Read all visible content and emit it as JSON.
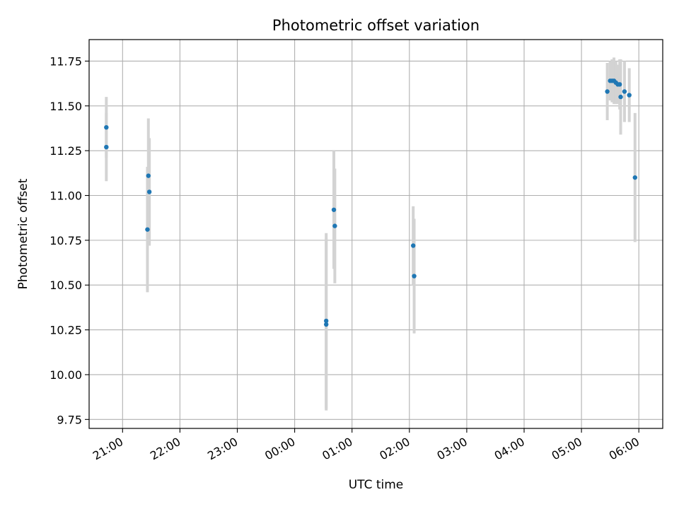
{
  "chart_data": {
    "type": "scatter",
    "title": "Photometric offset variation",
    "xlabel": "UTC time",
    "ylabel": "Photometric offset",
    "xlim": [
      "20:25",
      "06:25"
    ],
    "x_crosses_midnight": true,
    "ylim": [
      9.7,
      11.87
    ],
    "x_ticks": [
      "21:00",
      "22:00",
      "23:00",
      "00:00",
      "01:00",
      "02:00",
      "03:00",
      "04:00",
      "05:00",
      "06:00"
    ],
    "y_ticks": [
      "9.75",
      "10.00",
      "10.25",
      "10.50",
      "10.75",
      "11.00",
      "11.25",
      "11.50",
      "11.75"
    ],
    "grid": true,
    "marker_color": "#1f77b4",
    "errorbar_color": "#d3d3d3",
    "points": [
      {
        "x": "20:43",
        "y": 11.38,
        "err": 0.17
      },
      {
        "x": "20:43",
        "y": 11.27,
        "err": 0.19
      },
      {
        "x": "21:27",
        "y": 11.11,
        "err": 0.32
      },
      {
        "x": "21:28",
        "y": 11.02,
        "err": 0.3
      },
      {
        "x": "21:26",
        "y": 10.81,
        "err": 0.35
      },
      {
        "x": "00:33",
        "y": 10.3,
        "err": 0.49
      },
      {
        "x": "00:33",
        "y": 10.28,
        "err": 0.48
      },
      {
        "x": "00:41",
        "y": 10.92,
        "err": 0.33
      },
      {
        "x": "00:42",
        "y": 10.83,
        "err": 0.32
      },
      {
        "x": "02:04",
        "y": 10.72,
        "err": 0.22
      },
      {
        "x": "02:05",
        "y": 10.55,
        "err": 0.32
      },
      {
        "x": "05:27",
        "y": 11.58,
        "err": 0.16
      },
      {
        "x": "05:30",
        "y": 11.64,
        "err": 0.11
      },
      {
        "x": "05:32",
        "y": 11.64,
        "err": 0.12
      },
      {
        "x": "05:34",
        "y": 11.64,
        "err": 0.13
      },
      {
        "x": "05:36",
        "y": 11.63,
        "err": 0.12
      },
      {
        "x": "05:38",
        "y": 11.62,
        "err": 0.11
      },
      {
        "x": "05:40",
        "y": 11.62,
        "err": 0.14
      },
      {
        "x": "05:41",
        "y": 11.55,
        "err": 0.21
      },
      {
        "x": "05:45",
        "y": 11.58,
        "err": 0.17
      },
      {
        "x": "05:50",
        "y": 11.56,
        "err": 0.15
      },
      {
        "x": "05:56",
        "y": 11.1,
        "err": 0.36
      }
    ]
  }
}
